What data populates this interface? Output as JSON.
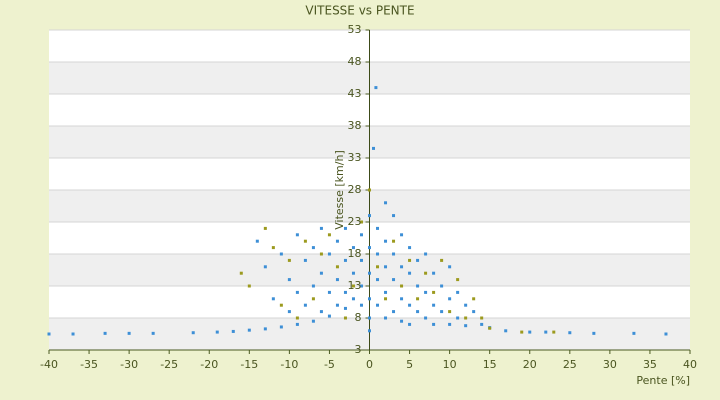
{
  "chart_data": {
    "type": "scatter",
    "title": "VITESSE vs PENTE",
    "x_label": "Pente [%]",
    "y_label": "Vitesse [km/h]",
    "xlim": [
      -40,
      40
    ],
    "xticks": [
      -40,
      -35,
      -30,
      -25,
      -20,
      -15,
      -10,
      -5,
      0,
      5,
      10,
      15,
      20,
      25,
      30,
      35,
      40
    ],
    "ylim": [
      3,
      53
    ],
    "yticks": [
      3,
      8,
      13,
      18,
      23,
      28,
      33,
      38,
      43,
      48,
      53
    ],
    "grid": true,
    "series": [
      {
        "color": "#3d8fd6",
        "x": [
          -40,
          -37,
          -33,
          -30,
          -27,
          -22,
          -19,
          -17,
          -15,
          -13,
          -11,
          -9,
          -7,
          -5,
          -3,
          -2,
          -1,
          -14,
          -13,
          -12,
          -11,
          -10,
          -10,
          -9,
          -9,
          -8,
          -8,
          -7,
          -7,
          -6,
          -6,
          -6,
          -5,
          -5,
          -4,
          -4,
          -4,
          -3,
          -3,
          -3,
          -2,
          -2,
          -1,
          -1,
          -1,
          0,
          0,
          0,
          0,
          0,
          0,
          0.5,
          0.8,
          1,
          1,
          1,
          1,
          2,
          2,
          2,
          2,
          2,
          3,
          3,
          3,
          3,
          4,
          4,
          4,
          4,
          5,
          5,
          5,
          5,
          6,
          6,
          6,
          7,
          7,
          7,
          8,
          8,
          8,
          9,
          9,
          10,
          10,
          10,
          11,
          11,
          12,
          12,
          13,
          14,
          15,
          17,
          20,
          22,
          25,
          28,
          33,
          37
        ],
        "values": [
          5.5,
          5.5,
          5.6,
          5.6,
          5.6,
          5.7,
          5.8,
          5.9,
          6.1,
          6.3,
          6.6,
          7,
          7.5,
          8.3,
          9.5,
          11,
          13,
          20,
          16,
          11,
          18,
          14,
          9,
          21,
          12,
          17,
          10,
          19,
          13,
          22,
          15,
          9,
          18,
          12,
          20,
          14,
          10,
          22,
          17,
          12,
          19,
          15,
          21,
          17,
          10,
          24,
          19,
          15,
          11,
          8,
          6,
          34.5,
          44,
          22,
          18,
          14,
          10,
          26,
          20,
          16,
          12,
          8,
          24,
          18,
          14,
          9,
          21,
          16,
          11,
          7.5,
          19,
          15,
          10,
          7,
          17,
          13,
          9,
          18,
          12,
          8,
          15,
          10,
          7,
          13,
          9,
          16,
          11,
          7,
          12,
          8,
          10,
          6.8,
          9,
          7,
          6.5,
          6,
          5.8,
          5.8,
          5.7,
          5.6,
          5.6,
          5.5
        ]
      },
      {
        "color": "#9c9a1e",
        "x": [
          -16,
          -15,
          -13,
          -12,
          -11,
          -10,
          -9,
          -8,
          -7,
          -6,
          -5,
          -4,
          -3,
          -2,
          -1,
          0,
          1,
          2,
          3,
          4,
          5,
          6,
          7,
          8,
          9,
          10,
          11,
          12,
          13,
          14,
          15,
          19,
          23
        ],
        "values": [
          15,
          13,
          22,
          19,
          10,
          17,
          8,
          20,
          11,
          18,
          21,
          16,
          8,
          13,
          23,
          28,
          16,
          11,
          20,
          13,
          17,
          11,
          15,
          12,
          17,
          9,
          14,
          8,
          11,
          8,
          6.4,
          5.8,
          5.8
        ]
      }
    ]
  }
}
